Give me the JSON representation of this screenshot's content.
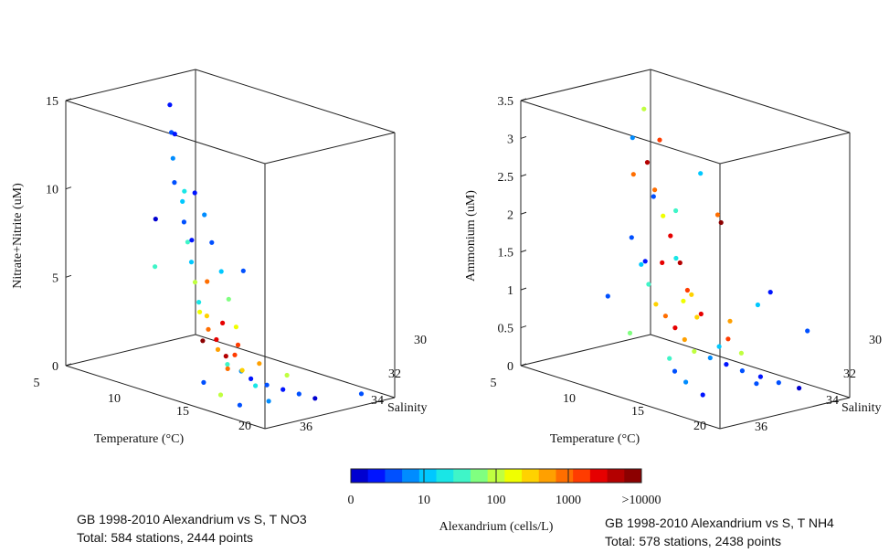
{
  "chart_data": [
    {
      "type": "scatter",
      "projection": "3d",
      "xlabel": "Temperature (°C)",
      "ylabel": "Salinity",
      "zlabel": "Nitrate+Nitrite (uM)",
      "xlim": [
        5,
        22
      ],
      "ylim": [
        30,
        36
      ],
      "zlim": [
        0,
        15
      ],
      "xticks": [
        "5",
        "10",
        "15",
        "20"
      ],
      "yticks": [
        "30",
        "32",
        "34",
        "36"
      ],
      "zticks": [
        "0",
        "5",
        "10",
        "15"
      ],
      "grid": false,
      "caption": [
        "GB 1998-2010 Alexandrium vs S, T NO3",
        "Total: 584 stations, 2444 points"
      ],
      "color_variable": "Alexandrium (cells/L)",
      "points": [
        {
          "x": 6.5,
          "y": 32.0,
          "z": 13.9,
          "c": 0.2
        },
        {
          "x": 7.0,
          "y": 32.2,
          "z": 12.5,
          "c": 0.5
        },
        {
          "x": 7.5,
          "y": 32.4,
          "z": 11.2,
          "c": 0.8
        },
        {
          "x": 8.0,
          "y": 32.6,
          "z": 10.0,
          "c": 0.4
        },
        {
          "x": 8.5,
          "y": 32.5,
          "z": 9.0,
          "c": 1.1
        },
        {
          "x": 9.0,
          "y": 32.7,
          "z": 8.0,
          "c": 0.6
        },
        {
          "x": 9.5,
          "y": 32.8,
          "z": 7.0,
          "c": 1.5
        },
        {
          "x": 10.0,
          "y": 32.9,
          "z": 6.0,
          "c": 0.9
        },
        {
          "x": 10.5,
          "y": 33.0,
          "z": 5.0,
          "c": 2.0
        },
        {
          "x": 11.0,
          "y": 33.1,
          "z": 4.0,
          "c": 1.2
        },
        {
          "x": 11.5,
          "y": 33.0,
          "z": 3.3,
          "c": 2.6
        },
        {
          "x": 12.0,
          "y": 33.2,
          "z": 2.7,
          "c": 3.1
        },
        {
          "x": 12.5,
          "y": 33.1,
          "z": 2.2,
          "c": 3.5
        },
        {
          "x": 13.0,
          "y": 33.3,
          "z": 1.8,
          "c": 2.8
        },
        {
          "x": 13.5,
          "y": 33.2,
          "z": 1.5,
          "c": 3.8
        },
        {
          "x": 14.0,
          "y": 33.4,
          "z": 1.2,
          "c": 1.6
        },
        {
          "x": 15.0,
          "y": 33.3,
          "z": 1.0,
          "c": 0.7
        },
        {
          "x": 16.0,
          "y": 33.4,
          "z": 0.8,
          "c": 0.3
        },
        {
          "x": 17.0,
          "y": 33.2,
          "z": 0.6,
          "c": 0.5
        },
        {
          "x": 18.0,
          "y": 33.0,
          "z": 0.5,
          "c": 0.2
        },
        {
          "x": 19.0,
          "y": 32.8,
          "z": 0.4,
          "c": 0.6
        },
        {
          "x": 20.0,
          "y": 32.6,
          "z": 0.3,
          "c": 0.1
        },
        {
          "x": 9.0,
          "y": 32.2,
          "z": 9.5,
          "c": 0.3
        },
        {
          "x": 10.0,
          "y": 32.3,
          "z": 8.5,
          "c": 0.7
        },
        {
          "x": 11.0,
          "y": 32.5,
          "z": 7.2,
          "c": 0.4
        },
        {
          "x": 12.0,
          "y": 32.6,
          "z": 5.8,
          "c": 1.0
        },
        {
          "x": 13.0,
          "y": 32.8,
          "z": 4.5,
          "c": 1.8
        },
        {
          "x": 14.0,
          "y": 33.0,
          "z": 3.2,
          "c": 2.2
        },
        {
          "x": 15.0,
          "y": 33.6,
          "z": 2.0,
          "c": 3.3
        },
        {
          "x": 16.0,
          "y": 33.8,
          "z": 1.4,
          "c": 2.4
        },
        {
          "x": 17.5,
          "y": 34.0,
          "z": 0.9,
          "c": 1.3
        },
        {
          "x": 19.0,
          "y": 34.2,
          "z": 0.4,
          "c": 0.8
        },
        {
          "x": 14.0,
          "y": 34.5,
          "z": 0.5,
          "c": 0.4
        },
        {
          "x": 16.0,
          "y": 34.8,
          "z": 0.3,
          "c": 2.1
        },
        {
          "x": 18.0,
          "y": 35.0,
          "z": 0.2,
          "c": 0.6
        },
        {
          "x": 6.0,
          "y": 31.5,
          "z": 12.0,
          "c": 0.3
        },
        {
          "x": 7.0,
          "y": 31.6,
          "z": 9.0,
          "c": 1.3
        },
        {
          "x": 8.0,
          "y": 31.8,
          "z": 6.5,
          "c": 0.2
        },
        {
          "x": 9.5,
          "y": 31.9,
          "z": 4.5,
          "c": 2.9
        },
        {
          "x": 11.0,
          "y": 32.0,
          "z": 2.5,
          "c": 3.6
        },
        {
          "x": 12.5,
          "y": 32.1,
          "z": 1.6,
          "c": 3.2
        },
        {
          "x": 14.5,
          "y": 32.2,
          "z": 1.0,
          "c": 2.7
        },
        {
          "x": 16.5,
          "y": 32.0,
          "z": 0.7,
          "c": 1.9
        },
        {
          "x": 21.0,
          "y": 31.0,
          "z": 0.3,
          "c": 0.4
        },
        {
          "x": 10.0,
          "y": 30.5,
          "z": 4.8,
          "c": 0.5
        },
        {
          "x": 8.0,
          "y": 33.5,
          "z": 5.5,
          "c": 1.4
        },
        {
          "x": 7.5,
          "y": 33.2,
          "z": 8.0,
          "c": 0.1
        },
        {
          "x": 12.0,
          "y": 33.6,
          "z": 3.8,
          "c": 2.3
        },
        {
          "x": 13.0,
          "y": 34.0,
          "z": 2.5,
          "c": 3.9
        },
        {
          "x": 15.5,
          "y": 34.2,
          "z": 1.5,
          "c": 3.0
        }
      ]
    },
    {
      "type": "scatter",
      "projection": "3d",
      "xlabel": "Temperature (°C)",
      "ylabel": "Salinity",
      "zlabel": "Ammonium (uM)",
      "xlim": [
        5,
        22
      ],
      "ylim": [
        30,
        36
      ],
      "zlim": [
        0,
        3.5
      ],
      "xticks": [
        "5",
        "10",
        "15",
        "20"
      ],
      "yticks": [
        "30",
        "32",
        "34",
        "36"
      ],
      "zticks": [
        "0",
        "0.5",
        "1",
        "1.5",
        "2",
        "2.5",
        "3",
        "3.5"
      ],
      "grid": false,
      "caption": [
        "GB 1998-2010 Alexandrium vs S, T NH4",
        "Total: 578 stations, 2438 points"
      ],
      "color_variable": "Alexandrium (cells/L)",
      "points": [
        {
          "x": 8.0,
          "y": 32.5,
          "z": 1.6,
          "c": 0.4
        },
        {
          "x": 9.0,
          "y": 32.6,
          "z": 1.3,
          "c": 0.9
        },
        {
          "x": 10.0,
          "y": 32.8,
          "z": 1.1,
          "c": 1.6
        },
        {
          "x": 11.0,
          "y": 33.0,
          "z": 0.9,
          "c": 2.4
        },
        {
          "x": 12.0,
          "y": 33.1,
          "z": 0.8,
          "c": 3.1
        },
        {
          "x": 13.0,
          "y": 33.2,
          "z": 0.7,
          "c": 3.6
        },
        {
          "x": 14.0,
          "y": 33.3,
          "z": 0.6,
          "c": 2.8
        },
        {
          "x": 15.0,
          "y": 33.4,
          "z": 0.5,
          "c": 1.9
        },
        {
          "x": 16.0,
          "y": 33.2,
          "z": 0.45,
          "c": 0.7
        },
        {
          "x": 17.0,
          "y": 33.0,
          "z": 0.4,
          "c": 0.3
        },
        {
          "x": 18.0,
          "y": 32.8,
          "z": 0.35,
          "c": 0.5
        },
        {
          "x": 19.0,
          "y": 32.5,
          "z": 0.3,
          "c": 0.2
        },
        {
          "x": 20.0,
          "y": 32.2,
          "z": 0.25,
          "c": 0.6
        },
        {
          "x": 21.0,
          "y": 31.8,
          "z": 0.2,
          "c": 0.1
        },
        {
          "x": 9.5,
          "y": 32.3,
          "z": 2.2,
          "c": 0.5
        },
        {
          "x": 10.5,
          "y": 32.4,
          "z": 2.0,
          "c": 2.2
        },
        {
          "x": 11.5,
          "y": 32.6,
          "z": 1.8,
          "c": 3.4
        },
        {
          "x": 12.5,
          "y": 32.7,
          "z": 1.5,
          "c": 3.8
        },
        {
          "x": 13.5,
          "y": 32.9,
          "z": 1.2,
          "c": 3.2
        },
        {
          "x": 14.5,
          "y": 33.0,
          "z": 0.9,
          "c": 2.6
        },
        {
          "x": 10.0,
          "y": 33.5,
          "z": 2.6,
          "c": 3.0
        },
        {
          "x": 11.0,
          "y": 33.4,
          "z": 2.8,
          "c": 3.7
        },
        {
          "x": 12.0,
          "y": 33.6,
          "z": 2.5,
          "c": 2.9
        },
        {
          "x": 9.0,
          "y": 33.0,
          "z": 3.0,
          "c": 0.8
        },
        {
          "x": 8.5,
          "y": 32.2,
          "z": 3.3,
          "c": 2.0
        },
        {
          "x": 10.5,
          "y": 31.8,
          "z": 1.4,
          "c": 1.2
        },
        {
          "x": 12.0,
          "y": 31.9,
          "z": 1.0,
          "c": 2.5
        },
        {
          "x": 13.0,
          "y": 32.0,
          "z": 0.8,
          "c": 3.5
        },
        {
          "x": 15.5,
          "y": 32.1,
          "z": 0.6,
          "c": 3.3
        },
        {
          "x": 17.0,
          "y": 32.3,
          "z": 0.5,
          "c": 2.1
        },
        {
          "x": 14.0,
          "y": 34.0,
          "z": 0.4,
          "c": 1.4
        },
        {
          "x": 15.0,
          "y": 34.3,
          "z": 0.3,
          "c": 0.4
        },
        {
          "x": 16.5,
          "y": 34.6,
          "z": 0.25,
          "c": 0.8
        },
        {
          "x": 18.5,
          "y": 34.9,
          "z": 0.2,
          "c": 0.3
        },
        {
          "x": 20.5,
          "y": 33.5,
          "z": 0.35,
          "c": 0.5
        },
        {
          "x": 7.5,
          "y": 31.6,
          "z": 1.2,
          "c": 0.2
        },
        {
          "x": 8.0,
          "y": 33.6,
          "z": 0.9,
          "c": 0.6
        },
        {
          "x": 11.0,
          "y": 34.2,
          "z": 0.6,
          "c": 1.8
        },
        {
          "x": 12.5,
          "y": 30.8,
          "z": 1.9,
          "c": 3.9
        },
        {
          "x": 14.0,
          "y": 31.2,
          "z": 0.7,
          "c": 2.7
        },
        {
          "x": 16.0,
          "y": 31.0,
          "z": 1.0,
          "c": 1.0
        },
        {
          "x": 19.5,
          "y": 30.6,
          "z": 0.8,
          "c": 0.4
        },
        {
          "x": 9.0,
          "y": 31.0,
          "z": 1.9,
          "c": 1.5
        },
        {
          "x": 13.0,
          "y": 33.8,
          "z": 1.6,
          "c": 3.6
        },
        {
          "x": 15.0,
          "y": 33.9,
          "z": 1.2,
          "c": 2.3
        },
        {
          "x": 17.5,
          "y": 33.6,
          "z": 0.7,
          "c": 1.1
        },
        {
          "x": 10.0,
          "y": 30.4,
          "z": 2.4,
          "c": 0.9
        },
        {
          "x": 11.5,
          "y": 33.1,
          "z": 3.1,
          "c": 3.3
        },
        {
          "x": 13.5,
          "y": 31.5,
          "z": 2.1,
          "c": 3.0
        },
        {
          "x": 18.0,
          "y": 31.5,
          "z": 1.3,
          "c": 0.3
        }
      ]
    }
  ],
  "colorbar": {
    "label": "Alexandrium (cells/L)",
    "ticks": [
      "0",
      "10",
      "100",
      "1000",
      ">10000"
    ],
    "colors": [
      "#0000d0",
      "#0014ff",
      "#0050ff",
      "#008cff",
      "#00c8ff",
      "#19e6e6",
      "#3ff5c8",
      "#80ff80",
      "#c0ff40",
      "#f0ff00",
      "#ffd200",
      "#ffa000",
      "#ff6e00",
      "#ff3c00",
      "#e60000",
      "#b40000",
      "#8c0000"
    ]
  }
}
